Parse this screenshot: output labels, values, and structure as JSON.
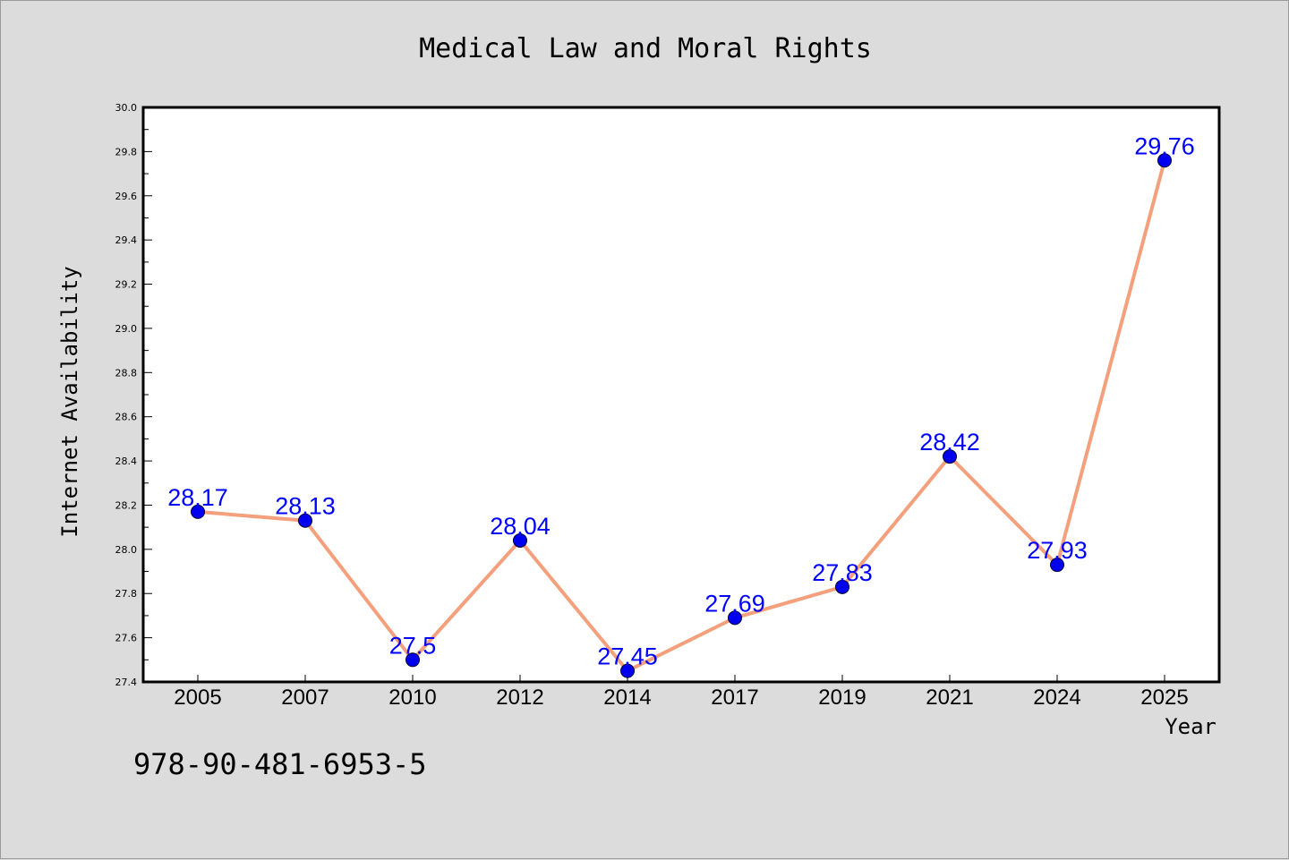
{
  "chart_data": {
    "type": "line",
    "title": "Medical Law and Moral Rights",
    "xlabel": "Year",
    "ylabel": "Internet Availability",
    "categories": [
      "2005",
      "2007",
      "2010",
      "2012",
      "2014",
      "2017",
      "2019",
      "2021",
      "2024",
      "2025"
    ],
    "series": [
      {
        "values": [
          28.17,
          28.13,
          27.5,
          28.04,
          27.45,
          27.69,
          27.83,
          28.42,
          27.93,
          29.76
        ],
        "labels": [
          "28.17",
          "28.13",
          "27.5",
          "28.04",
          "27.45",
          "27.69",
          "27.83",
          "28.42",
          "27.93",
          "29.76"
        ],
        "line_color": "#f4a07c",
        "marker_color": "#0000ee"
      }
    ],
    "ylim": [
      27.4,
      30.0
    ],
    "yticks": [
      "27.4",
      "27.6",
      "27.8",
      "28.0",
      "28.2",
      "28.4",
      "28.6",
      "28.8",
      "29.0",
      "29.2",
      "29.4",
      "29.6",
      "29.8",
      "30.0"
    ],
    "grid": false,
    "plot_background": "#ffffff",
    "page_background": "#dcdcdc"
  },
  "footer": {
    "isbn": "978-90-481-6953-5"
  }
}
